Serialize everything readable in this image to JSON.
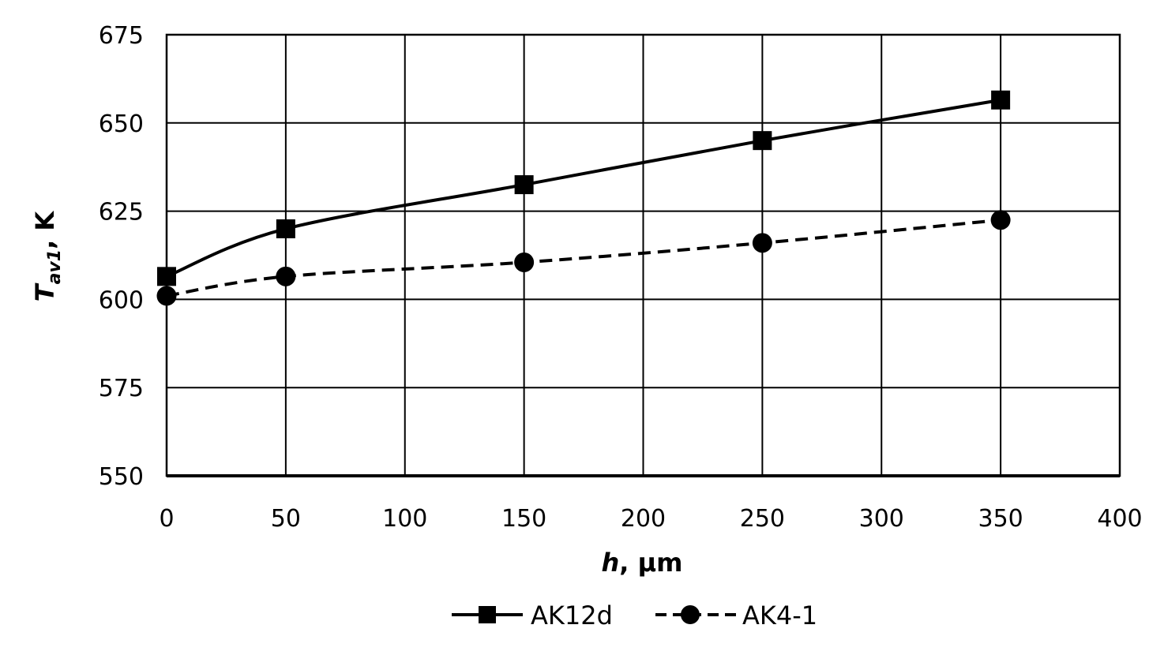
{
  "chart_data": {
    "type": "line",
    "xlabel": {
      "main": "h",
      "rest": ", μm"
    },
    "ylabel": {
      "main": "T",
      "sub": "av1",
      "rest": ", K"
    },
    "xlim": [
      0,
      400
    ],
    "ylim": [
      550,
      675
    ],
    "xticks": [
      0,
      50,
      100,
      150,
      200,
      250,
      300,
      350,
      400
    ],
    "yticks": [
      550,
      575,
      600,
      625,
      650,
      675
    ],
    "grid": true,
    "legend_position": "bottom",
    "series": [
      {
        "name": "AK12d",
        "marker": "square",
        "line": "solid",
        "color": "#000000",
        "x": [
          0,
          50,
          150,
          250,
          350
        ],
        "y": [
          606.5,
          620,
          632.5,
          645,
          656.5
        ]
      },
      {
        "name": "AK4-1",
        "marker": "circle",
        "line": "dashed",
        "color": "#000000",
        "x": [
          0,
          50,
          150,
          250,
          350
        ],
        "y": [
          601,
          606.5,
          610.5,
          616,
          622.5
        ]
      }
    ]
  }
}
